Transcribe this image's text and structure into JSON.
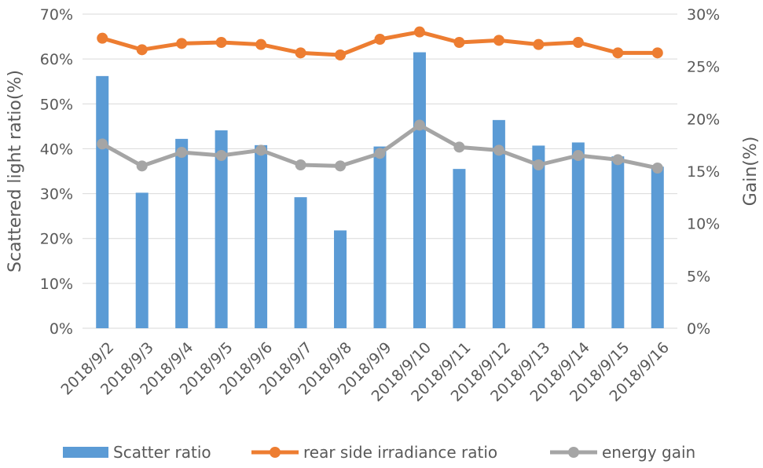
{
  "chart_data": {
    "type": "bar",
    "categories": [
      "2018/9/2",
      "2018/9/3",
      "2018/9/4",
      "2018/9/5",
      "2018/9/6",
      "2018/9/7",
      "2018/9/8",
      "2018/9/9",
      "2018/9/10",
      "2018/9/11",
      "2018/9/12",
      "2018/9/13",
      "2018/9/14",
      "2018/9/15",
      "2018/9/16"
    ],
    "series": [
      {
        "name": "Scatter ratio",
        "type": "bar",
        "axis": "left",
        "color": "#5B9BD5",
        "values": [
          56.2,
          30.2,
          42.2,
          44.1,
          40.8,
          29.2,
          21.8,
          40.5,
          61.5,
          35.5,
          46.4,
          40.7,
          41.4,
          38.3,
          36.0
        ]
      },
      {
        "name": "rear side irradiance ratio",
        "type": "line",
        "axis": "right",
        "color": "#ED7D31",
        "values": [
          27.7,
          26.6,
          27.2,
          27.3,
          27.1,
          26.3,
          26.1,
          27.6,
          28.3,
          27.3,
          27.5,
          27.1,
          27.3,
          26.3,
          26.3
        ]
      },
      {
        "name": "energy gain",
        "type": "line",
        "axis": "right",
        "color": "#A5A5A5",
        "values": [
          17.6,
          15.5,
          16.8,
          16.5,
          17.0,
          15.6,
          15.5,
          16.7,
          19.4,
          17.3,
          17.0,
          15.6,
          16.5,
          16.1,
          15.3
        ]
      }
    ],
    "y_left": {
      "label": "Scattered light ratio(%)",
      "ylim": [
        0,
        70
      ],
      "ticks": [
        0,
        10,
        20,
        30,
        40,
        50,
        60,
        70
      ],
      "tick_labels": [
        "0%",
        "10%",
        "20%",
        "30%",
        "40%",
        "50%",
        "60%",
        "70%"
      ]
    },
    "y_right": {
      "label": "Gain(%)",
      "ylim": [
        0,
        30
      ],
      "ticks": [
        0,
        5,
        10,
        15,
        20,
        25,
        30
      ],
      "tick_labels": [
        "0%",
        "5%",
        "10%",
        "15%",
        "20%",
        "25%",
        "30%"
      ]
    },
    "grid": true,
    "legend_position": "bottom"
  }
}
